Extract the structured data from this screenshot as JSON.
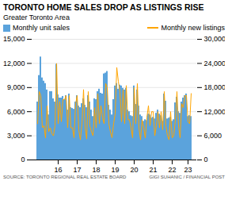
{
  "chart_data": {
    "type": "bar",
    "title": "TORONTO HOME SALES DROP AS LISTINGS RISE",
    "subtitle": "Greater Toronto Area",
    "annotations": [
      "SOURCE: TORONTO REGIONAL REAL ESTATE BOARD",
      "GIGI SUHANIC / FINANCIAL POST"
    ],
    "categories": [
      null,
      null,
      null,
      null,
      null,
      null,
      null,
      null,
      null,
      null,
      null,
      null,
      null,
      "16",
      null,
      null,
      null,
      null,
      null,
      null,
      null,
      null,
      null,
      null,
      null,
      "17",
      null,
      null,
      null,
      null,
      null,
      null,
      null,
      null,
      null,
      null,
      null,
      "18",
      null,
      null,
      null,
      null,
      null,
      null,
      null,
      null,
      null,
      null,
      null,
      "19",
      null,
      null,
      null,
      null,
      null,
      null,
      null,
      null,
      null,
      null,
      null,
      "20",
      null,
      null,
      null,
      null,
      null,
      null,
      null,
      null,
      null,
      null,
      null,
      "21",
      null,
      null,
      null,
      null,
      null,
      null,
      null,
      null,
      null,
      null,
      null,
      "22",
      null,
      null,
      null,
      null,
      null,
      null,
      null,
      null,
      null,
      "23",
      null,
      null
    ],
    "series": [
      {
        "name": "Monthly unit sales",
        "type": "bar",
        "color": "#5BA3DC",
        "values": [
          7200,
          10500,
          12800,
          10200,
          9800,
          9500,
          8700,
          5600,
          8500,
          8500,
          7600,
          7200,
          11900,
          8100,
          7700,
          7700,
          7900,
          7500,
          8000,
          6200,
          8200,
          6500,
          6400,
          6300,
          7200,
          8000,
          6700,
          6500,
          7000,
          7600,
          6800,
          6500,
          8000,
          7200,
          6200,
          5400,
          7600,
          7500,
          8500,
          8800,
          8300,
          8200,
          10700,
          10800,
          11000,
          6800,
          6200,
          5600,
          7500,
          9200,
          9500,
          8800,
          9300,
          9200,
          8900,
          8700,
          8900,
          6200,
          6000,
          5500,
          5400,
          9200,
          6900,
          8700,
          6700,
          5600,
          5400,
          4800,
          5000,
          4900,
          5700,
          5600,
          5200,
          5300,
          5100,
          5800,
          6200,
          5700,
          5500,
          4800,
          8200,
          7300,
          5100,
          5200,
          5300,
          4800,
          5000,
          7100,
          7800,
          6000,
          5800,
          7200,
          7700,
          8000,
          8200,
          5400,
          5500,
          5400
        ]
      },
      {
        "name": "Monthly new listings",
        "type": "line",
        "axis": "y2",
        "color": "#FFA500",
        "values": [
          9000,
          17000,
          16000,
          8000,
          8500,
          5500,
          13500,
          7000,
          8000,
          6500,
          6000,
          8500,
          24000,
          9000,
          14500,
          9500,
          15000,
          15000,
          16000,
          8000,
          16000,
          8000,
          8000,
          5500,
          14000,
          16000,
          7500,
          5000,
          9000,
          17500,
          8000,
          5200,
          17000,
          8500,
          7000,
          6000,
          13000,
          8000,
          16500,
          9000,
          13500,
          10500,
          9000,
          19000,
          18000,
          9000,
          7000,
          5500,
          9000,
          11500,
          23000,
          19500,
          17000,
          9500,
          17500,
          9000,
          18500,
          10000,
          10000,
          8000,
          5500,
          18000,
          9000,
          19000,
          8000,
          5000,
          10000,
          8000,
          5500,
          10500,
          13500,
          8500,
          12000,
          12000,
          6000,
          8500,
          12000,
          8000,
          12000,
          7500,
          17000,
          8500,
          6000,
          5000,
          12000,
          5500,
          6000,
          10000,
          17000,
          8500,
          5500,
          14000,
          13000,
          16000,
          16000,
          9500,
          9000,
          16500
        ]
      }
    ],
    "ylim": [
      0,
      15000
    ],
    "yticks": [
      0,
      {
        "value": 3000,
        "label": "3,000"
      },
      {
        "value": 6000,
        "label": "6,000"
      },
      {
        "value": 9000,
        "label": "9,000"
      },
      {
        "value": 12000,
        "label": "12,000"
      },
      {
        "value": 15000,
        "label": "15,000"
      }
    ],
    "y2lim": [
      0,
      30000
    ],
    "y2ticks": [
      0,
      {
        "value": 6000,
        "label": "6,000"
      },
      {
        "value": 12000,
        "label": "12,000"
      },
      {
        "value": 18000,
        "label": "18,000"
      },
      {
        "value": 24000,
        "label": "24,000"
      },
      {
        "value": 30000,
        "label": "30,000"
      }
    ],
    "grid": true,
    "legend": "top"
  }
}
